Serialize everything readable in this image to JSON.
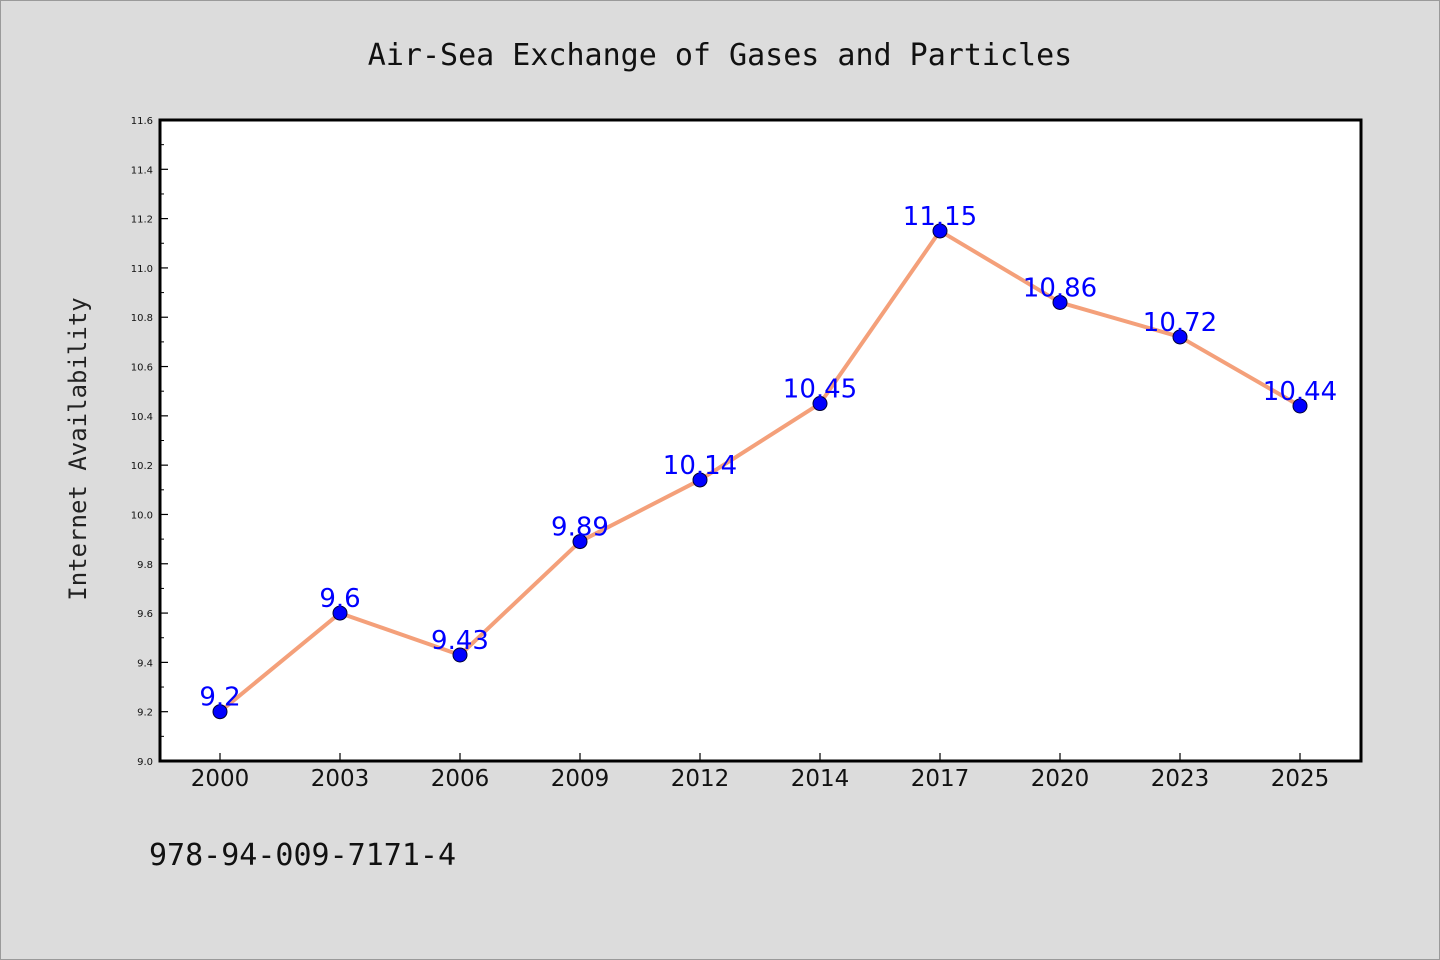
{
  "chart_data": {
    "type": "line",
    "title": "Air-Sea Exchange of Gases and Particles",
    "xlabel": "",
    "ylabel": "Internet Availability",
    "categories": [
      "2000",
      "2003",
      "2006",
      "2009",
      "2012",
      "2014",
      "2017",
      "2020",
      "2023",
      "2025"
    ],
    "series": [
      {
        "values": [
          9.2,
          9.6,
          9.43,
          9.89,
          10.14,
          10.45,
          11.15,
          10.86,
          10.72,
          10.44
        ],
        "data_labels": [
          "9.2",
          "9.6",
          "9.43",
          "9.89",
          "10.14",
          "10.45",
          "11.15",
          "10.86",
          "10.72",
          "10.44"
        ],
        "line_color": "#f4a07a",
        "marker_color": "#0000ff",
        "label_color": "#0000ff"
      }
    ],
    "ylim": [
      9.0,
      11.6
    ],
    "yticks": [
      "9.0",
      "9.2",
      "9.4",
      "9.6",
      "9.8",
      "10.0",
      "10.2",
      "10.4",
      "10.6",
      "10.8",
      "11.0",
      "11.2",
      "11.4",
      "11.6"
    ],
    "grid": false,
    "legend": "none"
  },
  "footer": {
    "isbn": "978-94-009-7171-4"
  },
  "colors": {
    "background": "#dcdcdc",
    "plot_area": "#ffffff",
    "axis": "#000000"
  }
}
